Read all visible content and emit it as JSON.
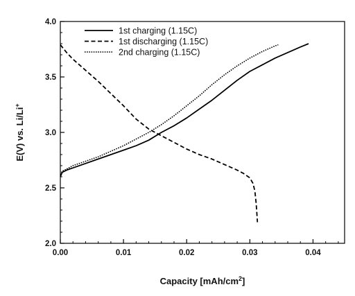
{
  "chart_data": {
    "type": "line",
    "title": "",
    "xlabel": "Capacity [mAh/cm",
    "xlabel_sup": "2",
    "xlabel_suffix": "]",
    "ylabel": "E(V) vs. Li/Li",
    "ylabel_sup": "+",
    "xlim": [
      0,
      0.045
    ],
    "ylim": [
      2.0,
      4.0
    ],
    "x_ticks": [
      0.0,
      0.01,
      0.02,
      0.03,
      0.04
    ],
    "x_tick_labels": [
      "0.00",
      "0.01",
      "0.02",
      "0.03",
      "0.04"
    ],
    "y_ticks": [
      2.0,
      2.5,
      3.0,
      3.5,
      4.0
    ],
    "y_tick_labels": [
      "2.0",
      "2.5",
      "3.0",
      "3.5",
      "4.0"
    ],
    "grid": false,
    "legend_position": "top-left",
    "series": [
      {
        "name": "1st charging (1.15C)",
        "style": "solid",
        "color": "#000000",
        "x": [
          0,
          0.0003,
          0.001,
          0.002,
          0.004,
          0.006,
          0.008,
          0.01,
          0.012,
          0.014,
          0.016,
          0.018,
          0.02,
          0.022,
          0.024,
          0.026,
          0.028,
          0.03,
          0.032,
          0.034,
          0.036,
          0.038,
          0.0393
        ],
        "y": [
          2.6,
          2.64,
          2.66,
          2.68,
          2.72,
          2.76,
          2.8,
          2.84,
          2.88,
          2.93,
          3.0,
          3.06,
          3.13,
          3.21,
          3.29,
          3.38,
          3.47,
          3.55,
          3.61,
          3.67,
          3.72,
          3.77,
          3.8
        ]
      },
      {
        "name": "1st discharging (1.15C)",
        "style": "dashed",
        "color": "#000000",
        "x": [
          0,
          0.001,
          0.002,
          0.004,
          0.006,
          0.008,
          0.01,
          0.012,
          0.014,
          0.016,
          0.018,
          0.02,
          0.022,
          0.024,
          0.026,
          0.028,
          0.029,
          0.03,
          0.0305,
          0.0308,
          0.031,
          0.0311,
          0.0312
        ],
        "y": [
          3.79,
          3.72,
          3.66,
          3.56,
          3.46,
          3.35,
          3.24,
          3.12,
          3.03,
          2.97,
          2.91,
          2.85,
          2.8,
          2.76,
          2.71,
          2.66,
          2.63,
          2.59,
          2.54,
          2.47,
          2.36,
          2.28,
          2.19
        ]
      },
      {
        "name": "2nd charging (1.15C)",
        "style": "dotted",
        "color": "#000000",
        "x": [
          0,
          0.0003,
          0.001,
          0.002,
          0.004,
          0.006,
          0.008,
          0.01,
          0.012,
          0.014,
          0.016,
          0.018,
          0.02,
          0.022,
          0.024,
          0.026,
          0.028,
          0.03,
          0.032,
          0.034,
          0.0345
        ],
        "y": [
          2.62,
          2.65,
          2.67,
          2.7,
          2.74,
          2.78,
          2.83,
          2.88,
          2.94,
          3.0,
          3.07,
          3.15,
          3.24,
          3.33,
          3.43,
          3.52,
          3.6,
          3.67,
          3.73,
          3.78,
          3.79
        ]
      }
    ]
  }
}
